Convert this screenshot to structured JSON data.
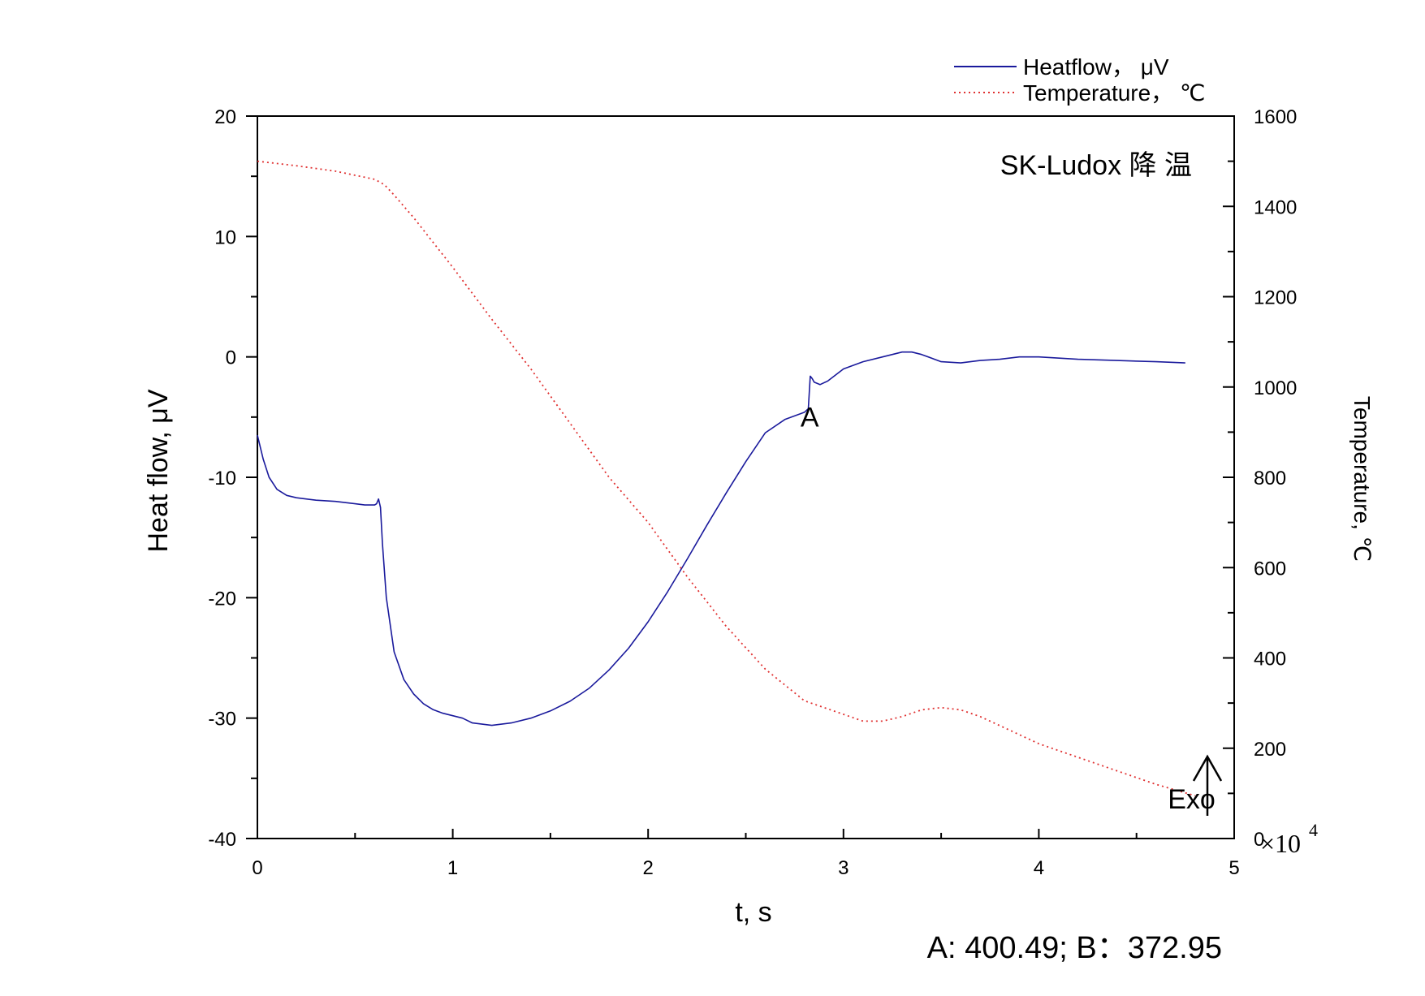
{
  "chart_data": {
    "type": "line",
    "annotation_title": "SK-Ludox 降 温",
    "xlabel": "t, s",
    "x_multiplier": "×10",
    "x_multiplier_exp": "4",
    "ylabel_left": "Heat flow, μV",
    "ylabel_right": "Temperature, ℃",
    "xlim": [
      0,
      5
    ],
    "ylim_left": [
      -40,
      20
    ],
    "ylim_right": [
      0,
      1600
    ],
    "x_ticks": [
      0,
      1,
      2,
      3,
      4,
      5
    ],
    "y_left_ticks": [
      -40,
      -30,
      -20,
      -10,
      0,
      10,
      20
    ],
    "y_right_ticks": [
      0,
      200,
      400,
      600,
      800,
      1000,
      1200,
      1400,
      1600
    ],
    "grid": false,
    "legend_position": "top-right",
    "series": [
      {
        "name": "Heatflow， μV",
        "axis": "left",
        "color": "#1a1a9c",
        "style": "solid",
        "x": [
          0,
          0.03,
          0.06,
          0.1,
          0.15,
          0.2,
          0.3,
          0.4,
          0.5,
          0.55,
          0.6,
          0.61,
          0.62,
          0.63,
          0.64,
          0.66,
          0.7,
          0.75,
          0.8,
          0.85,
          0.9,
          0.95,
          1.0,
          1.05,
          1.1,
          1.2,
          1.3,
          1.4,
          1.5,
          1.6,
          1.7,
          1.8,
          1.9,
          2.0,
          2.1,
          2.2,
          2.3,
          2.4,
          2.5,
          2.6,
          2.7,
          2.8,
          2.82,
          2.83,
          2.84,
          2.85,
          2.88,
          2.92,
          3.0,
          3.1,
          3.2,
          3.3,
          3.35,
          3.4,
          3.5,
          3.6,
          3.7,
          3.8,
          3.9,
          4.0,
          4.2,
          4.4,
          4.6,
          4.75
        ],
        "values": [
          -6.5,
          -8.5,
          -10.0,
          -11.0,
          -11.5,
          -11.7,
          -11.9,
          -12.0,
          -12.2,
          -12.3,
          -12.3,
          -12.2,
          -11.8,
          -12.5,
          -15.5,
          -20.0,
          -24.5,
          -26.8,
          -28.0,
          -28.8,
          -29.3,
          -29.6,
          -29.8,
          -30.0,
          -30.4,
          -30.6,
          -30.4,
          -30.0,
          -29.4,
          -28.6,
          -27.5,
          -26.0,
          -24.2,
          -22.0,
          -19.5,
          -16.8,
          -14.0,
          -11.3,
          -8.7,
          -6.3,
          -5.2,
          -4.6,
          -4.3,
          -1.6,
          -1.8,
          -2.1,
          -2.3,
          -2.0,
          -1.0,
          -0.4,
          0.0,
          0.4,
          0.4,
          0.2,
          -0.4,
          -0.5,
          -0.3,
          -0.2,
          0.0,
          0.0,
          -0.2,
          -0.3,
          -0.4,
          -0.5
        ]
      },
      {
        "name": "Temperature， ℃",
        "axis": "right",
        "color": "#e03030",
        "style": "dotted",
        "x": [
          0,
          0.2,
          0.4,
          0.6,
          0.65,
          0.7,
          0.8,
          1.0,
          1.2,
          1.4,
          1.6,
          1.8,
          2.0,
          2.2,
          2.4,
          2.6,
          2.8,
          3.0,
          3.1,
          3.2,
          3.3,
          3.4,
          3.5,
          3.6,
          3.7,
          3.8,
          4.0,
          4.2,
          4.4,
          4.6,
          4.8
        ],
        "values": [
          1500,
          1490,
          1478,
          1460,
          1448,
          1425,
          1375,
          1265,
          1150,
          1040,
          920,
          800,
          700,
          580,
          470,
          375,
          305,
          275,
          260,
          260,
          270,
          285,
          290,
          285,
          270,
          250,
          210,
          180,
          150,
          120,
          95
        ]
      }
    ],
    "annotations": [
      {
        "text": "A",
        "x": 2.78,
        "y": -5.8
      },
      {
        "text": "Exo",
        "x": 4.66,
        "y": -37.5
      }
    ],
    "footer_text": "A: 400.49; B：372.95"
  }
}
